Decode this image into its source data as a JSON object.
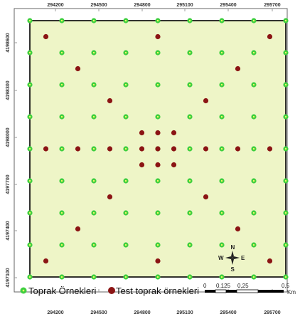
{
  "map": {
    "colors": {
      "background_area": "#eef5c7",
      "frame": "#666666",
      "boundary": "#000000",
      "grid_tick": "#999999",
      "soil_sample_dot": "#3fcf3f",
      "soil_sample_center": "#ffff66",
      "test_sample_dot": "#8b1414"
    },
    "x_ticks": [
      "294200",
      "294500",
      "294800",
      "295100",
      "295400",
      "295700"
    ],
    "y_ticks": [
      "4198600",
      "4198300",
      "4198000",
      "4197700",
      "4197400",
      "4197100"
    ],
    "legend": {
      "soil_samples": "Toprak Örnekleri",
      "test_samples": "Test toprak örnekleri"
    },
    "scale_bar": {
      "labels": [
        "0",
        "0,125",
        "0,25",
        "0,5"
      ],
      "unit": "Km"
    },
    "north_arrow": {
      "n": "N",
      "s": "S",
      "e": "E",
      "w": "W"
    },
    "soil_sample_grid": {
      "columns": 9,
      "rows": 9
    },
    "test_samples_grid_index": [
      [
        0.5,
        0.5
      ],
      [
        4,
        0.5
      ],
      [
        7.5,
        0.5
      ],
      [
        1.5,
        1.5
      ],
      [
        6.5,
        1.5
      ],
      [
        2.5,
        2.5
      ],
      [
        5.5,
        2.5
      ],
      [
        3.5,
        3.5
      ],
      [
        4,
        3.5
      ],
      [
        4.5,
        3.5
      ],
      [
        0.5,
        4
      ],
      [
        1.5,
        4
      ],
      [
        2.5,
        4
      ],
      [
        3.5,
        4
      ],
      [
        4,
        4
      ],
      [
        4.5,
        4
      ],
      [
        5.5,
        4
      ],
      [
        6.5,
        4
      ],
      [
        7.5,
        4
      ],
      [
        3.5,
        4.5
      ],
      [
        4,
        4.5
      ],
      [
        4.5,
        4.5
      ],
      [
        2.5,
        5.5
      ],
      [
        5.5,
        5.5
      ],
      [
        1.5,
        6.5
      ],
      [
        6.5,
        6.5
      ],
      [
        0.5,
        7.5
      ],
      [
        4,
        7.5
      ],
      [
        7.5,
        7.5
      ]
    ]
  }
}
